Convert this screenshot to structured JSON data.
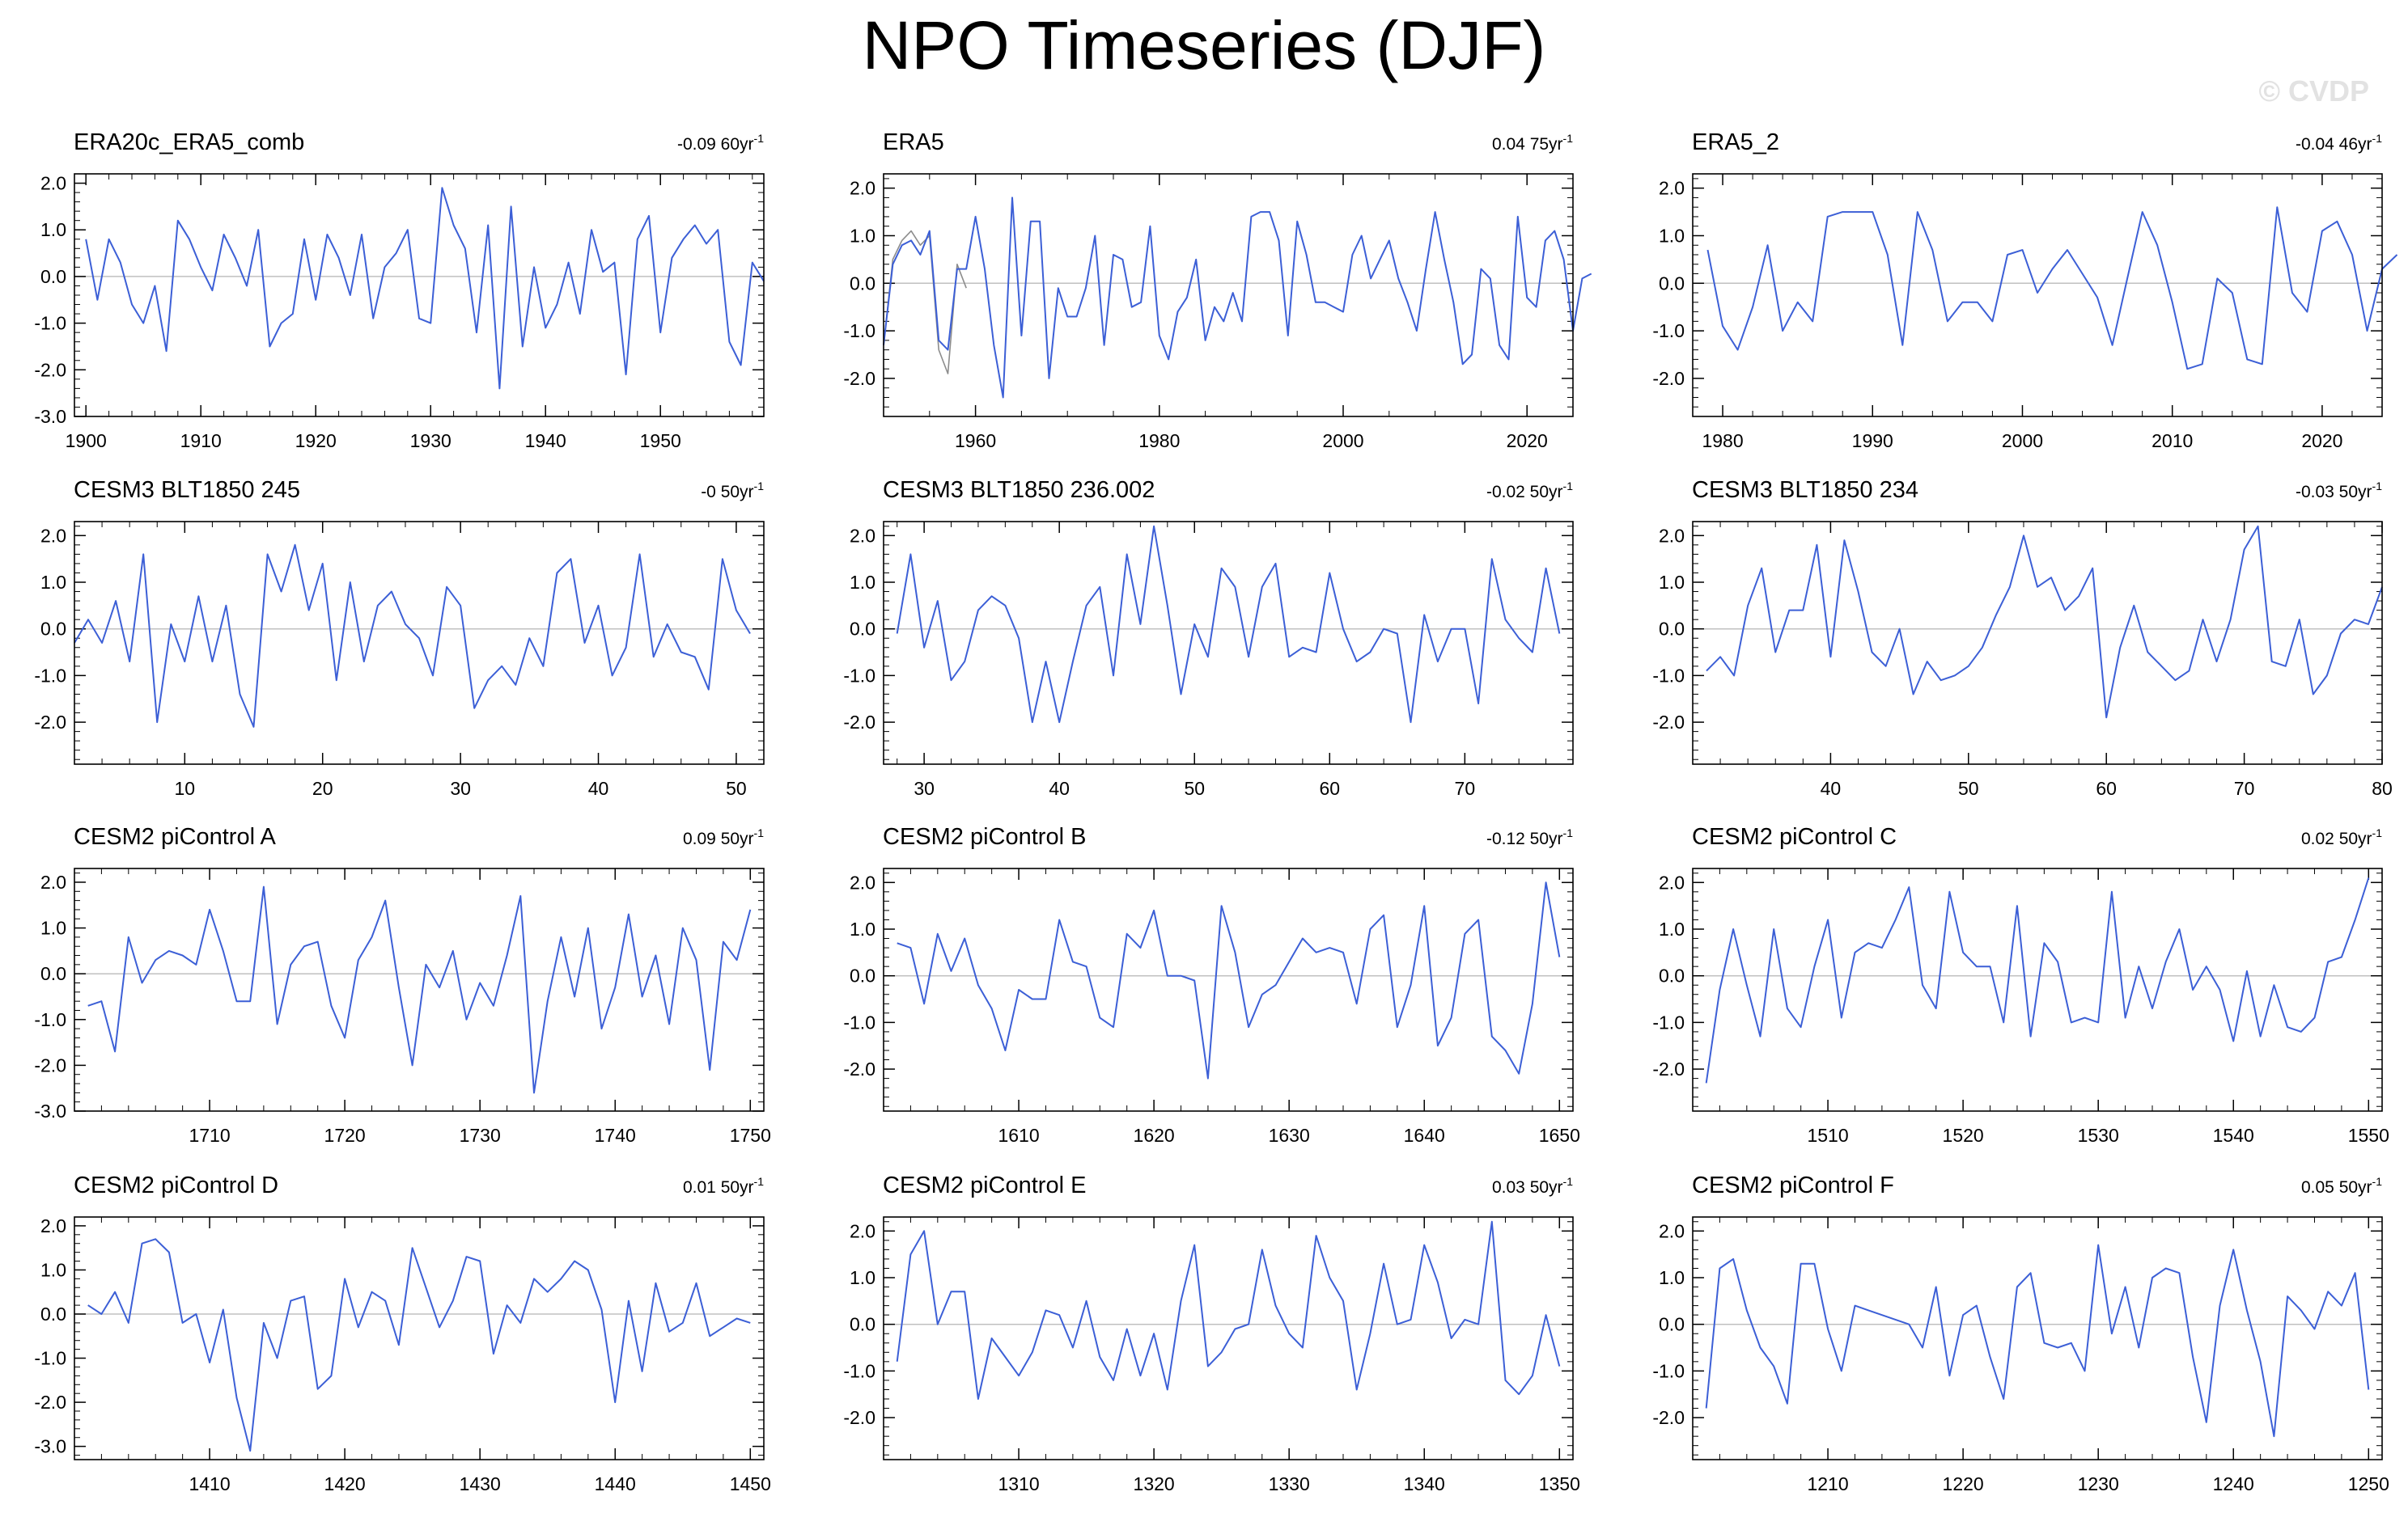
{
  "title": "NPO Timeseries (DJF)",
  "watermark": "© CVDP",
  "colors": {
    "series": "#3c5fd6",
    "obs_overlay": "#8c8c8c",
    "zero_line": "#c0c0c0",
    "axis": "#000000"
  },
  "chart_data": [
    {
      "type": "line",
      "title": "ERA20c_ERA5_comb",
      "trend_value": "-0.09",
      "trend_unit": "60yr",
      "trend_exp": "-1",
      "xlim": [
        1899,
        1959
      ],
      "ylim": [
        -3.0,
        2.2
      ],
      "yticks": [
        -3.0,
        -2.0,
        -1.0,
        0.0,
        1.0,
        2.0
      ],
      "xticks": [
        1900,
        1910,
        1920,
        1930,
        1940,
        1950
      ],
      "series": [
        {
          "name": "ERA20c_ERA5_comb",
          "x0": 1900,
          "values": [
            0.8,
            -0.5,
            0.8,
            0.3,
            -0.6,
            -1.0,
            -0.2,
            -1.6,
            1.2,
            0.8,
            0.2,
            -0.3,
            0.9,
            0.4,
            -0.2,
            1.0,
            -1.5,
            -1.0,
            -0.8,
            0.8,
            -0.5,
            0.9,
            0.4,
            -0.4,
            0.9,
            -0.9,
            0.2,
            0.5,
            1.0,
            -0.9,
            -1.0,
            1.9,
            1.1,
            0.6,
            -1.2,
            1.1,
            -2.4,
            1.5,
            -1.5,
            0.2,
            -1.1,
            -0.6,
            0.3,
            -0.8,
            1.0,
            0.1,
            0.3,
            -2.1,
            0.8,
            1.3,
            -1.2,
            0.4,
            0.8,
            1.1,
            0.7,
            1.0,
            -1.4,
            -1.9,
            0.3,
            -0.1
          ]
        }
      ]
    },
    {
      "type": "line",
      "title": "ERA5",
      "trend_value": "0.04",
      "trend_unit": "75yr",
      "trend_exp": "-1",
      "xlim": [
        1950,
        2025
      ],
      "ylim": [
        -2.8,
        2.3
      ],
      "yticks": [
        -2.0,
        -1.0,
        0.0,
        1.0,
        2.0
      ],
      "xticks": [
        1960,
        1980,
        2000,
        2020
      ],
      "series": [
        {
          "name": "ERA5",
          "x0": 1950,
          "values": [
            -1.3,
            0.4,
            0.8,
            0.9,
            0.6,
            1.1,
            -1.2,
            -1.4,
            0.3,
            0.3,
            1.4,
            0.3,
            -1.3,
            -2.4,
            1.8,
            -1.1,
            1.3,
            1.3,
            -2.0,
            -0.1,
            -0.7,
            -0.7,
            -0.1,
            1.0,
            -1.3,
            0.6,
            0.5,
            -0.5,
            -0.4,
            1.2,
            -1.1,
            -1.6,
            -0.6,
            -0.3,
            0.5,
            -1.2,
            -0.5,
            -0.8,
            -0.2,
            -0.8,
            1.4,
            1.5,
            1.5,
            0.9,
            -1.1,
            1.3,
            0.6,
            -0.4,
            -0.4,
            -0.5,
            -0.6,
            0.6,
            1.0,
            0.1,
            0.5,
            0.9,
            0.1,
            -0.4,
            -1.0,
            0.3,
            1.5,
            0.5,
            -0.4,
            -1.7,
            -1.5,
            0.3,
            0.1,
            -1.3,
            -1.6,
            1.4,
            -0.3,
            -0.5,
            0.9,
            1.1,
            0.5,
            -1.0,
            0.1,
            0.2
          ]
        },
        {
          "name": "ERA20c_ERA5_comb",
          "x0": 1950,
          "values": [
            -1.3,
            0.5,
            0.9,
            1.1,
            0.8,
            1.0,
            -1.4,
            -1.9,
            0.4,
            -0.1
          ]
        }
      ]
    },
    {
      "type": "line",
      "title": "ERA5_2",
      "trend_value": "-0.04",
      "trend_unit": "46yr",
      "trend_exp": "-1",
      "xlim": [
        1978,
        2024
      ],
      "ylim": [
        -2.8,
        2.3
      ],
      "yticks": [
        -2.0,
        -1.0,
        0.0,
        1.0,
        2.0
      ],
      "xticks": [
        1980,
        1990,
        2000,
        2010,
        2020
      ],
      "series": [
        {
          "name": "ERA5_2",
          "x0": 1979,
          "values": [
            0.7,
            -0.9,
            -1.4,
            -0.5,
            0.8,
            -1.0,
            -0.4,
            -0.8,
            1.4,
            1.5,
            1.5,
            1.5,
            0.6,
            -1.3,
            1.5,
            0.7,
            -0.8,
            -0.4,
            -0.4,
            -0.8,
            0.6,
            0.7,
            -0.2,
            0.3,
            0.7,
            0.2,
            -0.3,
            -1.3,
            0.1,
            1.5,
            0.8,
            -0.4,
            -1.8,
            -1.7,
            0.1,
            -0.2,
            -1.6,
            -1.7,
            1.6,
            -0.2,
            -0.6,
            1.1,
            1.3,
            0.6,
            -1.0,
            0.3,
            0.6
          ]
        }
      ]
    },
    {
      "type": "line",
      "title": "CESM3 BLT1850 245",
      "trend_value": "-0",
      "trend_unit": "50yr",
      "trend_exp": "-1",
      "xlim": [
        2,
        52
      ],
      "ylim": [
        -2.9,
        2.3
      ],
      "yticks": [
        -2.0,
        -1.0,
        0.0,
        1.0,
        2.0
      ],
      "xticks": [
        10,
        20,
        30,
        40,
        50
      ],
      "series": [
        {
          "name": "CESM3 BLT1850 245",
          "x0": 2,
          "values": [
            -0.3,
            0.2,
            -0.3,
            0.6,
            -0.7,
            1.6,
            -2.0,
            0.1,
            -0.7,
            0.7,
            -0.7,
            0.5,
            -1.4,
            -2.1,
            1.6,
            0.8,
            1.8,
            0.4,
            1.4,
            -1.1,
            1.0,
            -0.7,
            0.5,
            0.8,
            0.1,
            -0.2,
            -1.0,
            0.9,
            0.5,
            -1.7,
            -1.1,
            -0.8,
            -1.2,
            -0.2,
            -0.8,
            1.2,
            1.5,
            -0.3,
            0.5,
            -1.0,
            -0.4,
            1.6,
            -0.6,
            0.1,
            -0.5,
            -0.6,
            -1.3,
            1.5,
            0.4,
            -0.1
          ]
        }
      ]
    },
    {
      "type": "line",
      "title": "CESM3 BLT1850 236.002",
      "trend_value": "-0.02",
      "trend_unit": "50yr",
      "trend_exp": "-1",
      "xlim": [
        27,
        78
      ],
      "ylim": [
        -2.9,
        2.3
      ],
      "yticks": [
        -2.0,
        -1.0,
        0.0,
        1.0,
        2.0
      ],
      "xticks": [
        30,
        40,
        50,
        60,
        70
      ],
      "series": [
        {
          "name": "CESM3 BLT1850 236.002",
          "x0": 28,
          "values": [
            -0.1,
            1.6,
            -0.4,
            0.6,
            -1.1,
            -0.7,
            0.4,
            0.7,
            0.5,
            -0.2,
            -2.0,
            -0.7,
            -2.0,
            -0.7,
            0.5,
            0.9,
            -1.0,
            1.6,
            0.1,
            2.2,
            0.5,
            -1.4,
            0.1,
            -0.6,
            1.3,
            0.9,
            -0.6,
            0.9,
            1.4,
            -0.6,
            -0.4,
            -0.5,
            1.2,
            0.0,
            -0.7,
            -0.5,
            0.0,
            -0.1,
            -2.0,
            0.3,
            -0.7,
            0.0,
            0.0,
            -1.6,
            1.5,
            0.2,
            -0.2,
            -0.5,
            1.3,
            -0.1
          ]
        }
      ]
    },
    {
      "type": "line",
      "title": "CESM3 BLT1850 234",
      "trend_value": "-0.03",
      "trend_unit": "50yr",
      "trend_exp": "-1",
      "xlim": [
        30,
        80
      ],
      "ylim": [
        -2.9,
        2.3
      ],
      "yticks": [
        -2.0,
        -1.0,
        0.0,
        1.0,
        2.0
      ],
      "xticks": [
        40,
        50,
        60,
        70,
        80
      ],
      "series": [
        {
          "name": "CESM3 BLT1850 234",
          "x0": 31,
          "values": [
            -0.9,
            -0.6,
            -1.0,
            0.5,
            1.3,
            -0.5,
            0.4,
            0.4,
            1.8,
            -0.6,
            1.9,
            0.8,
            -0.5,
            -0.8,
            0.0,
            -1.4,
            -0.7,
            -1.1,
            -1.0,
            -0.8,
            -0.4,
            0.3,
            0.9,
            2.0,
            0.9,
            1.1,
            0.4,
            0.7,
            1.3,
            -1.9,
            -0.4,
            0.5,
            -0.5,
            -0.8,
            -1.1,
            -0.9,
            0.2,
            -0.7,
            0.2,
            1.7,
            2.2,
            -0.7,
            -0.8,
            0.2,
            -1.4,
            -1.0,
            -0.1,
            0.2,
            0.1,
            0.9
          ]
        }
      ]
    },
    {
      "type": "line",
      "title": "CESM2 piControl A",
      "trend_value": "0.09",
      "trend_unit": "50yr",
      "trend_exp": "-1",
      "xlim": [
        1700,
        1751
      ],
      "ylim": [
        -3.0,
        2.3
      ],
      "yticks": [
        -3.0,
        -2.0,
        -1.0,
        0.0,
        1.0,
        2.0
      ],
      "xticks": [
        1710,
        1720,
        1730,
        1740,
        1750
      ],
      "series": [
        {
          "name": "CESM2 piControl A",
          "x0": 1701,
          "values": [
            -0.7,
            -0.6,
            -1.7,
            0.8,
            -0.2,
            0.3,
            0.5,
            0.4,
            0.2,
            1.4,
            0.5,
            -0.6,
            -0.6,
            1.9,
            -1.1,
            0.2,
            0.6,
            0.7,
            -0.7,
            -1.4,
            0.3,
            0.8,
            1.6,
            -0.3,
            -2.0,
            0.2,
            -0.3,
            0.5,
            -1.0,
            -0.2,
            -0.7,
            0.4,
            1.7,
            -2.6,
            -0.6,
            0.8,
            -0.5,
            1.0,
            -1.2,
            -0.3,
            1.3,
            -0.5,
            0.4,
            -1.1,
            1.0,
            0.3,
            -2.1,
            0.7,
            0.3,
            1.4
          ]
        }
      ]
    },
    {
      "type": "line",
      "title": "CESM2 piControl B",
      "trend_value": "-0.12",
      "trend_unit": "50yr",
      "trend_exp": "-1",
      "xlim": [
        1600,
        1651
      ],
      "ylim": [
        -2.9,
        2.3
      ],
      "yticks": [
        -2.0,
        -1.0,
        0.0,
        1.0,
        2.0
      ],
      "xticks": [
        1610,
        1620,
        1630,
        1640,
        1650
      ],
      "series": [
        {
          "name": "CESM2 piControl B",
          "x0": 1601,
          "values": [
            0.7,
            0.6,
            -0.6,
            0.9,
            0.1,
            0.8,
            -0.2,
            -0.7,
            -1.6,
            -0.3,
            -0.5,
            -0.5,
            1.2,
            0.3,
            0.2,
            -0.9,
            -1.1,
            0.9,
            0.6,
            1.4,
            0.0,
            0.0,
            -0.1,
            -2.2,
            1.5,
            0.5,
            -1.1,
            -0.4,
            -0.2,
            0.3,
            0.8,
            0.5,
            0.6,
            0.5,
            -0.6,
            1.0,
            1.3,
            -1.1,
            -0.2,
            1.5,
            -1.5,
            -0.9,
            0.9,
            1.2,
            -1.3,
            -1.6,
            -2.1,
            -0.6,
            2.0,
            0.4
          ]
        }
      ]
    },
    {
      "type": "line",
      "title": "CESM2 piControl C",
      "trend_value": "0.02",
      "trend_unit": "50yr",
      "trend_exp": "-1",
      "xlim": [
        1500,
        1551
      ],
      "ylim": [
        -2.9,
        2.3
      ],
      "yticks": [
        -2.0,
        -1.0,
        0.0,
        1.0,
        2.0
      ],
      "xticks": [
        1510,
        1520,
        1530,
        1540,
        1550
      ],
      "series": [
        {
          "name": "CESM2 piControl C",
          "x0": 1501,
          "values": [
            -2.3,
            -0.3,
            1.0,
            -0.2,
            -1.3,
            1.0,
            -0.7,
            -1.1,
            0.2,
            1.2,
            -0.9,
            0.5,
            0.7,
            0.6,
            1.2,
            1.9,
            -0.2,
            -0.7,
            1.8,
            0.5,
            0.2,
            0.2,
            -1.0,
            1.5,
            -1.3,
            0.7,
            0.3,
            -1.0,
            -0.9,
            -1.0,
            1.8,
            -0.9,
            0.2,
            -0.7,
            0.3,
            1.0,
            -0.3,
            0.2,
            -0.3,
            -1.4,
            0.1,
            -1.3,
            -0.2,
            -1.1,
            -1.2,
            -0.9,
            0.3,
            0.4,
            1.2,
            2.1
          ]
        }
      ]
    },
    {
      "type": "line",
      "title": "CESM2 piControl D",
      "trend_value": "0.01",
      "trend_unit": "50yr",
      "trend_exp": "-1",
      "xlim": [
        1400,
        1451
      ],
      "ylim": [
        -3.3,
        2.2
      ],
      "yticks": [
        -3.0,
        -2.0,
        -1.0,
        0.0,
        1.0,
        2.0
      ],
      "xticks": [
        1410,
        1420,
        1430,
        1440,
        1450
      ],
      "series": [
        {
          "name": "CESM2 piControl D",
          "x0": 1401,
          "values": [
            0.2,
            0.0,
            0.5,
            -0.2,
            1.6,
            1.7,
            1.4,
            -0.2,
            0.0,
            -1.1,
            0.1,
            -1.9,
            -3.1,
            -0.2,
            -1.0,
            0.3,
            0.4,
            -1.7,
            -1.4,
            0.8,
            -0.3,
            0.5,
            0.3,
            -0.7,
            1.5,
            0.6,
            -0.3,
            0.3,
            1.3,
            1.2,
            -0.9,
            0.2,
            -0.2,
            0.8,
            0.5,
            0.8,
            1.2,
            1.0,
            0.1,
            -2.0,
            0.3,
            -1.3,
            0.7,
            -0.4,
            -0.2,
            0.7,
            -0.5,
            -0.3,
            -0.1,
            -0.2
          ]
        }
      ]
    },
    {
      "type": "line",
      "title": "CESM2 piControl E",
      "trend_value": "0.03",
      "trend_unit": "50yr",
      "trend_exp": "-1",
      "xlim": [
        1300,
        1351
      ],
      "ylim": [
        -2.9,
        2.3
      ],
      "yticks": [
        -2.0,
        -1.0,
        0.0,
        1.0,
        2.0
      ],
      "xticks": [
        1310,
        1320,
        1330,
        1340,
        1350
      ],
      "series": [
        {
          "name": "CESM2 piControl E",
          "x0": 1301,
          "values": [
            -0.8,
            1.5,
            2.0,
            0.0,
            0.7,
            0.7,
            -1.6,
            -0.3,
            -0.7,
            -1.1,
            -0.6,
            0.3,
            0.2,
            -0.5,
            0.5,
            -0.7,
            -1.2,
            -0.1,
            -1.1,
            -0.2,
            -1.4,
            0.5,
            1.7,
            -0.9,
            -0.6,
            -0.1,
            0.0,
            1.6,
            0.4,
            -0.2,
            -0.5,
            1.9,
            1.0,
            0.5,
            -1.4,
            -0.2,
            1.3,
            0.0,
            0.1,
            1.7,
            0.9,
            -0.3,
            0.1,
            0.0,
            2.2,
            -1.2,
            -1.5,
            -1.1,
            0.2,
            -0.9
          ]
        }
      ]
    },
    {
      "type": "line",
      "title": "CESM2 piControl F",
      "trend_value": "0.05",
      "trend_unit": "50yr",
      "trend_exp": "-1",
      "xlim": [
        1200,
        1251
      ],
      "ylim": [
        -2.9,
        2.3
      ],
      "yticks": [
        -2.0,
        -1.0,
        0.0,
        1.0,
        2.0
      ],
      "xticks": [
        1210,
        1220,
        1230,
        1240,
        1250
      ],
      "series": [
        {
          "name": "CESM2 piControl F",
          "x0": 1201,
          "values": [
            -1.8,
            1.2,
            1.4,
            0.3,
            -0.5,
            -0.9,
            -1.7,
            1.3,
            1.3,
            -0.1,
            -1.0,
            0.4,
            0.3,
            0.2,
            0.1,
            0.0,
            -0.5,
            0.8,
            -1.1,
            0.2,
            0.4,
            -0.7,
            -1.6,
            0.8,
            1.1,
            -0.4,
            -0.5,
            -0.4,
            -1.0,
            1.7,
            -0.2,
            0.8,
            -0.5,
            1.0,
            1.2,
            1.1,
            -0.7,
            -2.1,
            0.4,
            1.6,
            0.3,
            -0.8,
            -2.4,
            0.6,
            0.3,
            -0.1,
            0.7,
            0.4,
            1.1,
            -1.4
          ]
        }
      ]
    }
  ]
}
